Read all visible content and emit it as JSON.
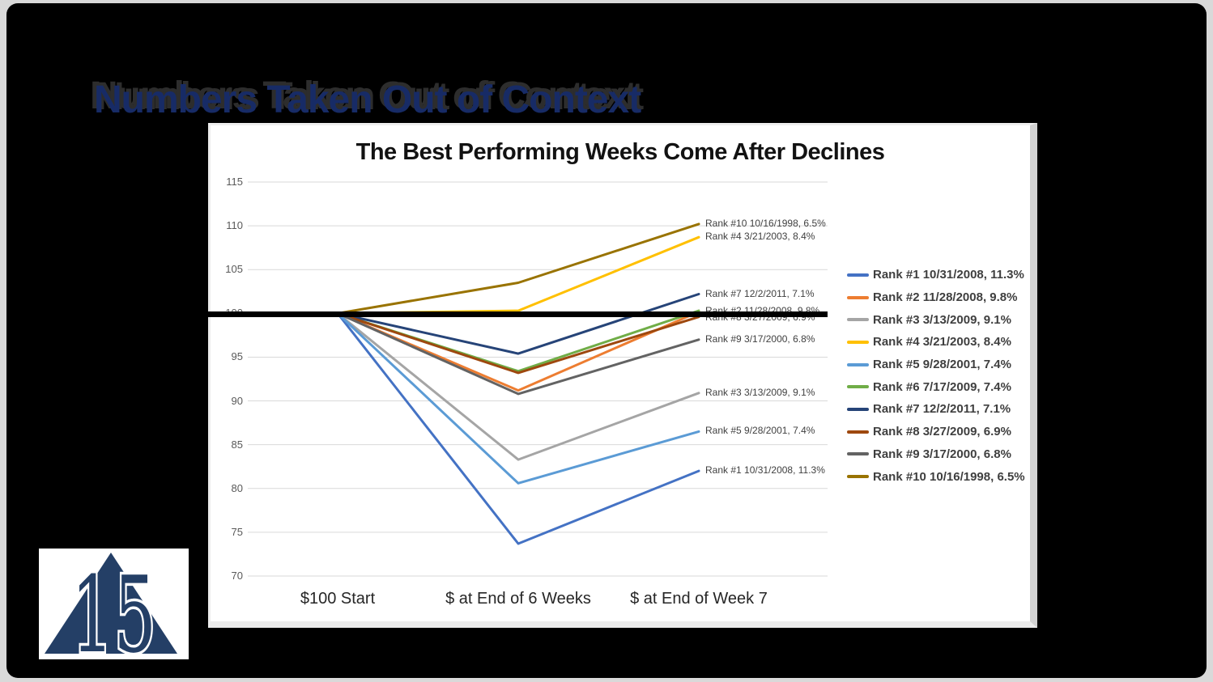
{
  "slide": {
    "title": "Numbers Taken Out of Context"
  },
  "logo": {
    "number": "15",
    "color": "#243f66"
  },
  "chart_data": {
    "type": "line",
    "title": "The Best Performing Weeks Come After Declines",
    "categories": [
      "$100 Start",
      "$ at End of 6 Weeks",
      "$ at End of Week 7"
    ],
    "ylim": [
      70,
      115
    ],
    "y_ticks": [
      70,
      75,
      80,
      85,
      90,
      95,
      100,
      105,
      110,
      115
    ],
    "grid": true,
    "legend_position": "right",
    "baseline_value": 100,
    "series": [
      {
        "name": "Rank #1 10/31/2008, 11.3%",
        "color": "#4472C4",
        "values": [
          100,
          73.7,
          82.0
        ]
      },
      {
        "name": "Rank #2 11/28/2008, 9.8%",
        "color": "#ED7D31",
        "values": [
          100,
          91.2,
          100.2
        ]
      },
      {
        "name": "Rank #3 3/13/2009, 9.1%",
        "color": "#A5A5A5",
        "values": [
          100,
          83.3,
          90.9
        ]
      },
      {
        "name": "Rank #4 3/21/2003, 8.4%",
        "color": "#FFC000",
        "values": [
          100,
          100.3,
          108.7
        ]
      },
      {
        "name": "Rank #5 9/28/2001, 7.4%",
        "color": "#5B9BD5",
        "values": [
          100,
          80.6,
          86.5
        ]
      },
      {
        "name": "Rank #6 7/17/2009, 7.4%",
        "color": "#70AD47",
        "values": [
          100,
          93.4,
          100.3
        ]
      },
      {
        "name": "Rank #7 12/2/2011, 7.1%",
        "color": "#264478",
        "values": [
          100,
          95.4,
          102.2
        ]
      },
      {
        "name": "Rank #8 3/27/2009, 6.9%",
        "color": "#9E480E",
        "values": [
          100,
          93.2,
          99.6
        ]
      },
      {
        "name": "Rank #9 3/17/2000, 6.8%",
        "color": "#636363",
        "values": [
          100,
          90.8,
          97.0
        ]
      },
      {
        "name": "Rank #10 10/16/1998, 6.5%",
        "color": "#997300",
        "values": [
          100,
          103.5,
          110.2
        ]
      }
    ],
    "data_labels": [
      {
        "text": "Rank #10 10/16/1998, 6.5%",
        "value": 110.2
      },
      {
        "text": "Rank #4 3/21/2003, 8.4%",
        "value": 108.7
      },
      {
        "text": "Rank #7 12/2/2011, 7.1%",
        "value": 102.2
      },
      {
        "text": "Rank #2 11/28/2008, 9.8%",
        "value": 100.2
      },
      {
        "text": "Rank #8 3/27/2009, 6.9%",
        "value": 99.5
      },
      {
        "text": "Rank #9 3/17/2000, 6.8%",
        "value": 97.0
      },
      {
        "text": "Rank #3 3/13/2009, 9.1%",
        "value": 90.9
      },
      {
        "text": "Rank #5 9/28/2001, 7.4%",
        "value": 86.5
      },
      {
        "text": "Rank #1 10/31/2008, 11.3%",
        "value": 82.0
      }
    ]
  }
}
